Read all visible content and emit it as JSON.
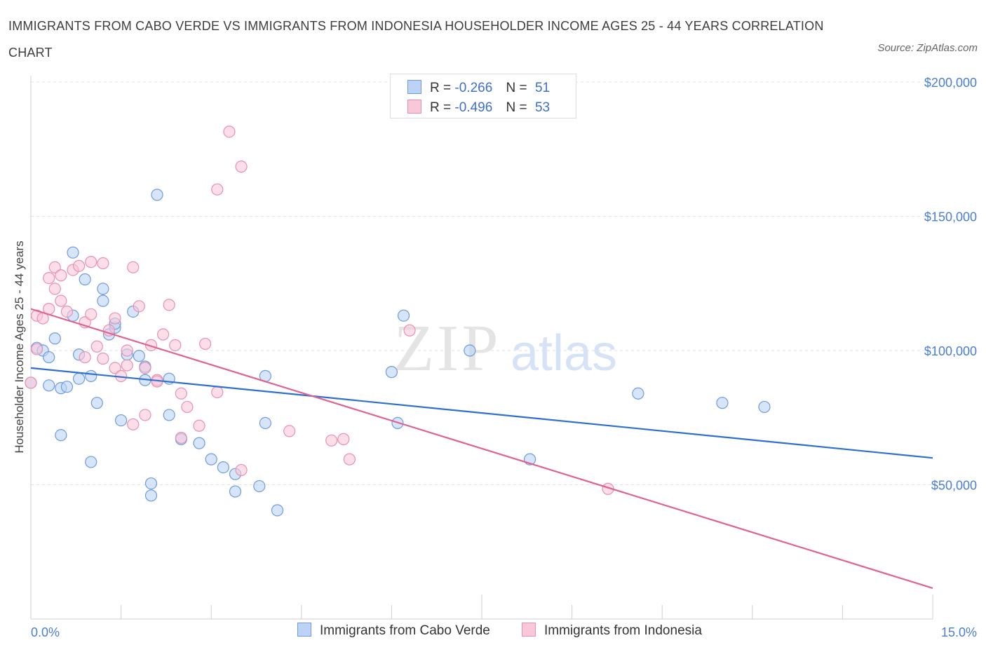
{
  "title": "IMMIGRANTS FROM CABO VERDE VS IMMIGRANTS FROM INDONESIA HOUSEHOLDER INCOME AGES 25 - 44 YEARS CORRELATION CHART",
  "source": "Source: ZipAtlas.com",
  "watermark": {
    "zip": "ZIP",
    "atlas": "atlas"
  },
  "stats": [
    {
      "r_label": "R =",
      "r_value": "-0.266",
      "n_label": "N =",
      "n_value": "51",
      "color": "#6e9be0",
      "fill": "#bcd3f5"
    },
    {
      "r_label": "R =",
      "r_value": "-0.496",
      "n_label": "N =",
      "n_value": "53",
      "color": "#e890b0",
      "fill": "#f8c8d8"
    }
  ],
  "legend": [
    {
      "label": "Immigrants from Cabo Verde"
    },
    {
      "label": "Immigrants from Indonesia"
    }
  ],
  "chart_data": {
    "type": "scatter",
    "ylabel": "Householder Income Ages 25 - 44 years",
    "x_tick_labels": {
      "min": "0.0%",
      "max": "15.0%"
    },
    "y_tick_labels": [
      "$50,000",
      "$100,000",
      "$150,000",
      "$200,000"
    ],
    "xlim": [
      0,
      15
    ],
    "ylim": [
      0,
      200000
    ],
    "yticks": [
      50000,
      100000,
      150000,
      200000
    ],
    "grid": true,
    "legend_position": "bottom",
    "series": [
      {
        "name": "Immigrants from Cabo Verde",
        "color": "#6e9be0",
        "fill": "#bcd3f5",
        "trend": {
          "x": [
            0,
            15
          ],
          "y": [
            93500,
            60000
          ]
        },
        "points": [
          [
            0.1,
            101000
          ],
          [
            0.2,
            100000
          ],
          [
            0.3,
            97500
          ],
          [
            0.4,
            104500
          ],
          [
            0.5,
            86000
          ],
          [
            0.6,
            86500
          ],
          [
            0.5,
            68500
          ],
          [
            0.7,
            113000
          ],
          [
            0.8,
            98500
          ],
          [
            0.7,
            136500
          ],
          [
            0.9,
            126500
          ],
          [
            0.8,
            89500
          ],
          [
            1.0,
            90500
          ],
          [
            1.0,
            58500
          ],
          [
            1.1,
            80500
          ],
          [
            1.2,
            123000
          ],
          [
            1.2,
            118500
          ],
          [
            1.3,
            106000
          ],
          [
            1.4,
            108500
          ],
          [
            1.4,
            110000
          ],
          [
            1.5,
            74000
          ],
          [
            1.6,
            98500
          ],
          [
            1.7,
            114500
          ],
          [
            1.8,
            98000
          ],
          [
            1.9,
            94000
          ],
          [
            1.9,
            89000
          ],
          [
            2.0,
            50500
          ],
          [
            2.0,
            46000
          ],
          [
            2.1,
            158000
          ],
          [
            2.3,
            89500
          ],
          [
            2.3,
            76000
          ],
          [
            2.5,
            67000
          ],
          [
            2.8,
            65500
          ],
          [
            3.0,
            59500
          ],
          [
            3.2,
            56500
          ],
          [
            3.4,
            54000
          ],
          [
            3.4,
            47500
          ],
          [
            3.8,
            49500
          ],
          [
            3.9,
            73000
          ],
          [
            3.9,
            90500
          ],
          [
            4.1,
            40500
          ],
          [
            6.0,
            92000
          ],
          [
            6.1,
            73000
          ],
          [
            6.2,
            113000
          ],
          [
            7.3,
            100000
          ],
          [
            8.3,
            59500
          ],
          [
            10.1,
            84000
          ],
          [
            11.5,
            80500
          ],
          [
            12.2,
            79000
          ],
          [
            0.0,
            88000
          ],
          [
            0.3,
            87000
          ]
        ]
      },
      {
        "name": "Immigrants from Indonesia",
        "color": "#e890b0",
        "fill": "#f8c8d8",
        "trend": {
          "x": [
            0,
            15
          ],
          "y": [
            115500,
            11500
          ]
        },
        "points": [
          [
            0.0,
            88000
          ],
          [
            0.1,
            100500
          ],
          [
            0.1,
            113000
          ],
          [
            0.2,
            112000
          ],
          [
            0.3,
            115500
          ],
          [
            0.3,
            127000
          ],
          [
            0.4,
            123000
          ],
          [
            0.4,
            131000
          ],
          [
            0.5,
            128000
          ],
          [
            0.5,
            118500
          ],
          [
            0.6,
            114500
          ],
          [
            0.7,
            130000
          ],
          [
            0.8,
            131500
          ],
          [
            0.9,
            110500
          ],
          [
            0.9,
            97500
          ],
          [
            1.0,
            113500
          ],
          [
            1.0,
            133000
          ],
          [
            1.1,
            101500
          ],
          [
            1.2,
            132500
          ],
          [
            1.2,
            97000
          ],
          [
            1.3,
            107500
          ],
          [
            1.4,
            112000
          ],
          [
            1.4,
            93500
          ],
          [
            1.5,
            90500
          ],
          [
            1.6,
            94500
          ],
          [
            1.6,
            100000
          ],
          [
            1.7,
            72500
          ],
          [
            1.7,
            131000
          ],
          [
            1.8,
            116500
          ],
          [
            1.9,
            93500
          ],
          [
            1.9,
            76000
          ],
          [
            2.0,
            102000
          ],
          [
            2.1,
            89000
          ],
          [
            2.1,
            88500
          ],
          [
            2.2,
            106000
          ],
          [
            2.3,
            117000
          ],
          [
            2.4,
            102000
          ],
          [
            2.5,
            67500
          ],
          [
            2.5,
            84000
          ],
          [
            2.6,
            79000
          ],
          [
            2.8,
            72000
          ],
          [
            2.9,
            102500
          ],
          [
            3.1,
            84500
          ],
          [
            3.1,
            160000
          ],
          [
            3.3,
            181500
          ],
          [
            3.5,
            168500
          ],
          [
            3.5,
            55500
          ],
          [
            4.3,
            70000
          ],
          [
            5.0,
            66500
          ],
          [
            5.2,
            67000
          ],
          [
            5.3,
            59500
          ],
          [
            6.3,
            107500
          ],
          [
            9.6,
            48500
          ]
        ]
      }
    ]
  }
}
